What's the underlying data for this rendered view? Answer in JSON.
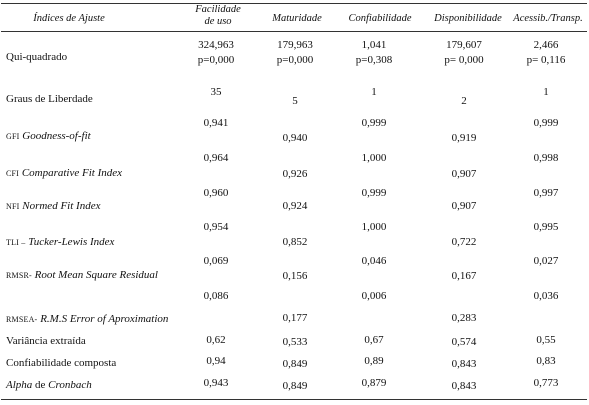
{
  "headers": {
    "index": "Índices de Ajuste",
    "c1a": "Facilidade",
    "c1b": "de uso",
    "c2": "Maturidade",
    "c3": "Confiabilidade",
    "c4": "Disponibilidade",
    "c5": "Acessib./Transp."
  },
  "rows": {
    "qui": {
      "label": "Qui-quadrado",
      "v1": "324,963",
      "p1": "p=0,000",
      "v2": "179,963",
      "p2": "p=0,000",
      "v3": "1,041",
      "p3": "p=0,308",
      "v4": "179,607",
      "p4": "p= 0,000",
      "v5": "2,466",
      "p5": "p= 0,116"
    },
    "gl": {
      "label": "Graus de Liberdade",
      "v1": "35",
      "v2": "5",
      "v3": "1",
      "v4": "2",
      "v5": "1"
    },
    "gfi": {
      "abbr": "GFI",
      "name": "Goodness-of-fit",
      "v1": "0,941",
      "v2": "0,940",
      "v3": "0,999",
      "v4": "0,919",
      "v5": "0,999"
    },
    "cfi": {
      "abbr": "CFI",
      "name": "Comparative Fit Index",
      "v1": "0,964",
      "v2": "0,926",
      "v3": "1,000",
      "v4": "0,907",
      "v5": "0,998"
    },
    "nfi": {
      "abbr": "NFI",
      "name": "Normed Fit Index",
      "v1": "0,960",
      "v2": "0,924",
      "v3": "0,999",
      "v4": "0,907",
      "v5": "0,997"
    },
    "tli": {
      "abbr": "TLI –",
      "name": "Tucker-Lewis Index",
      "v1": "0,954",
      "v2": "0,852",
      "v3": "1,000",
      "v4": "0,722",
      "v5": "0,995"
    },
    "rmsr": {
      "abbr": "RMSR-",
      "name": "Root Mean Square Residual",
      "v1": "0,069",
      "v2": "0,156",
      "v3": "0,046",
      "v4": "0,167",
      "v5": "0,027"
    },
    "rmsea": {
      "abbr": "RMSEA-",
      "name": "R.M.S Error of Aproximation",
      "v1": "0,086",
      "v2": "0,177",
      "v3": "0,006",
      "v4": "0,283",
      "v5": "0,036"
    },
    "var": {
      "label": "Variância extraída",
      "v1": "0,62",
      "v2": "0,533",
      "v3": "0,67",
      "v4": "0,574",
      "v5": "0,55"
    },
    "conf": {
      "label": "Confiabilidade composta",
      "v1": "0,94",
      "v2": "0,849",
      "v3": "0,89",
      "v4": "0,843",
      "v5": "0,83"
    },
    "alpha": {
      "label_a": "Alpha",
      "label_b": " de ",
      "label_c": "Cronbach",
      "v1": "0,943",
      "v2": "0,849",
      "v3": "0,879",
      "v4": "0,843",
      "v5": "0,773"
    }
  }
}
